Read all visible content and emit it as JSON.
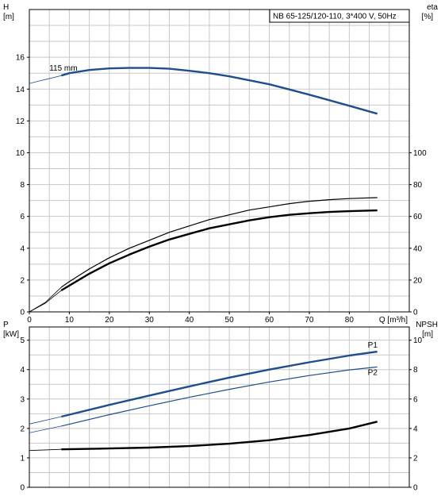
{
  "chart_data": [
    {
      "type": "line",
      "title": "NB 65-125/120-110, 3*400 V, 50Hz",
      "xlabel": "Q [m³/h]",
      "x_ticks": [
        "0",
        "10",
        "20",
        "30",
        "40",
        "50",
        "60",
        "70",
        "80"
      ],
      "xlim": [
        0,
        95
      ],
      "ylabel_left": [
        "H",
        "[m]"
      ],
      "ylim_left": [
        0,
        19
      ],
      "y_ticks_left": [
        "0",
        "2",
        "4",
        "6",
        "8",
        "10",
        "12",
        "14",
        "16"
      ],
      "ylabel_right": [
        "eta",
        "[%]"
      ],
      "ylim_right": [
        0,
        190
      ],
      "y_ticks_right": [
        "0",
        "20",
        "40",
        "60",
        "80",
        "100"
      ],
      "grid": true,
      "annotations": [
        {
          "text": "115 mm",
          "x": 5,
          "y": 15.3
        }
      ],
      "series": [
        {
          "axis": "left",
          "color": "#1f4e8c",
          "points": [
            [
              8,
              14.85
            ],
            [
              10,
              15.0
            ],
            [
              15,
              15.2
            ],
            [
              20,
              15.3
            ],
            [
              25,
              15.33
            ],
            [
              30,
              15.33
            ],
            [
              35,
              15.28
            ],
            [
              40,
              15.15
            ],
            [
              45,
              15.0
            ],
            [
              50,
              14.8
            ],
            [
              55,
              14.55
            ],
            [
              60,
              14.3
            ],
            [
              65,
              13.98
            ],
            [
              70,
              13.65
            ],
            [
              75,
              13.3
            ],
            [
              80,
              12.95
            ],
            [
              87,
              12.45
            ]
          ],
          "extrapolated": [
            [
              0,
              14.35
            ],
            [
              2,
              14.48
            ],
            [
              4,
              14.6
            ],
            [
              6,
              14.72
            ],
            [
              8,
              14.85
            ]
          ]
        },
        {
          "axis": "right",
          "color": "#000000",
          "points": [
            [
              8,
              15.5
            ],
            [
              10,
              19
            ],
            [
              15,
              27
            ],
            [
              20,
              34
            ],
            [
              25,
              40
            ],
            [
              30,
              45
            ],
            [
              35,
              50
            ],
            [
              40,
              54
            ],
            [
              45,
              58
            ],
            [
              50,
              61
            ],
            [
              55,
              64
            ],
            [
              60,
              66
            ],
            [
              65,
              68
            ],
            [
              70,
              69.5
            ],
            [
              75,
              70.5
            ],
            [
              80,
              71.2
            ],
            [
              87,
              71.8
            ]
          ],
          "extrapolated": [
            [
              0,
              0
            ],
            [
              4,
              6
            ],
            [
              8,
              15.5
            ]
          ]
        },
        {
          "axis": "right",
          "color": "#000000",
          "points": [
            [
              8,
              13.5
            ],
            [
              10,
              16.5
            ],
            [
              15,
              24
            ],
            [
              20,
              30.5
            ],
            [
              25,
              36
            ],
            [
              30,
              41
            ],
            [
              35,
              45.5
            ],
            [
              40,
              49
            ],
            [
              45,
              52.5
            ],
            [
              50,
              55
            ],
            [
              55,
              57.5
            ],
            [
              60,
              59.5
            ],
            [
              65,
              61
            ],
            [
              70,
              62
            ],
            [
              75,
              62.8
            ],
            [
              80,
              63.3
            ],
            [
              87,
              63.8
            ]
          ],
          "extrapolated": [
            [
              0,
              0
            ],
            [
              4,
              5.5
            ],
            [
              8,
              13.5
            ]
          ]
        }
      ]
    },
    {
      "type": "line",
      "xlim": [
        0,
        95
      ],
      "ylabel_left": [
        "P",
        "[kW]"
      ],
      "ylim_left": [
        0,
        5.45
      ],
      "y_ticks_left": [
        "0",
        "1",
        "2",
        "3",
        "4",
        "5"
      ],
      "ylabel_right": [
        "NPSH",
        "[m]"
      ],
      "ylim_right": [
        0,
        10.9
      ],
      "y_ticks_right": [
        "0",
        "2",
        "4",
        "6",
        "8",
        "10"
      ],
      "grid": true,
      "series": [
        {
          "name": "P1",
          "axis": "left",
          "color": "#1f4e8c",
          "points": [
            [
              8,
              2.4
            ],
            [
              20,
              2.8
            ],
            [
              30,
              3.12
            ],
            [
              40,
              3.43
            ],
            [
              50,
              3.73
            ],
            [
              60,
              4.0
            ],
            [
              70,
              4.25
            ],
            [
              80,
              4.48
            ],
            [
              87,
              4.61
            ]
          ],
          "extrapolated": [
            [
              0,
              2.15
            ],
            [
              8,
              2.4
            ]
          ]
        },
        {
          "name": "P2",
          "axis": "left",
          "color": "#1f4e8c",
          "points": [
            [
              8,
              2.08
            ],
            [
              20,
              2.47
            ],
            [
              30,
              2.77
            ],
            [
              40,
              3.06
            ],
            [
              50,
              3.33
            ],
            [
              60,
              3.58
            ],
            [
              70,
              3.8
            ],
            [
              80,
              3.99
            ],
            [
              87,
              4.09
            ]
          ],
          "extrapolated": [
            [
              0,
              1.85
            ],
            [
              8,
              2.08
            ]
          ]
        },
        {
          "axis": "right",
          "color": "#000000",
          "points": [
            [
              8,
              2.58
            ],
            [
              20,
              2.64
            ],
            [
              30,
              2.7
            ],
            [
              40,
              2.8
            ],
            [
              50,
              2.96
            ],
            [
              60,
              3.2
            ],
            [
              70,
              3.55
            ],
            [
              80,
              4.0
            ],
            [
              87,
              4.46
            ]
          ],
          "extrapolated": [
            [
              0,
              2.5
            ],
            [
              8,
              2.58
            ]
          ]
        }
      ]
    }
  ]
}
